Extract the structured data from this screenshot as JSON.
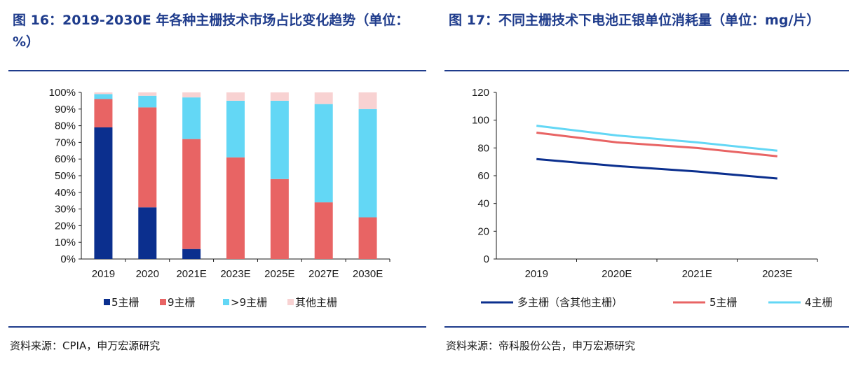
{
  "left": {
    "title": "图 16：2019-2030E 年各种主栅技术市场占比变化趋势（单位：%）",
    "source": "资料来源：CPIA，申万宏源研究",
    "chart_data": {
      "type": "bar",
      "stacked": true,
      "categories": [
        "2019",
        "2020",
        "2021E",
        "2023E",
        "2025E",
        "2027E",
        "2030E"
      ],
      "series": [
        {
          "name": "5主栅",
          "color": "#0b2f8e",
          "values": [
            79,
            31,
            6,
            0,
            0,
            0,
            0
          ]
        },
        {
          "name": "9主栅",
          "color": "#e86464",
          "values": [
            17,
            60,
            66,
            61,
            48,
            34,
            25
          ]
        },
        {
          "name": ">9主栅",
          "color": "#63d7f5",
          "values": [
            3,
            7,
            25,
            34,
            47,
            59,
            65
          ]
        },
        {
          "name": "其他主栅",
          "color": "#f8d2d2",
          "values": [
            1,
            2,
            3,
            5,
            5,
            7,
            10
          ]
        }
      ],
      "ylim": [
        0,
        100
      ],
      "yticks": [
        "0%",
        "10%",
        "20%",
        "30%",
        "40%",
        "50%",
        "60%",
        "70%",
        "80%",
        "90%",
        "100%"
      ],
      "legend": "bottom",
      "grid": false
    }
  },
  "right": {
    "title": "图 17：不同主栅技术下电池正银单位消耗量（单位：mg/片）",
    "source": "资料来源：帝科股份公告，申万宏源研究",
    "chart_data": {
      "type": "line",
      "categories": [
        "2019",
        "2020E",
        "2021E",
        "2023E"
      ],
      "series": [
        {
          "name": "多主栅（含其他主栅）",
          "color": "#0b2f8e",
          "values": [
            72,
            67,
            63,
            58
          ]
        },
        {
          "name": "5主栅",
          "color": "#e86464",
          "values": [
            91,
            84,
            80,
            74
          ]
        },
        {
          "name": "4主栅",
          "color": "#63d7f5",
          "values": [
            96,
            89,
            84,
            78
          ]
        }
      ],
      "ylim": [
        0,
        120
      ],
      "yticks": [
        "0",
        "20",
        "40",
        "60",
        "80",
        "100",
        "120"
      ],
      "legend": "bottom",
      "grid": false
    }
  }
}
